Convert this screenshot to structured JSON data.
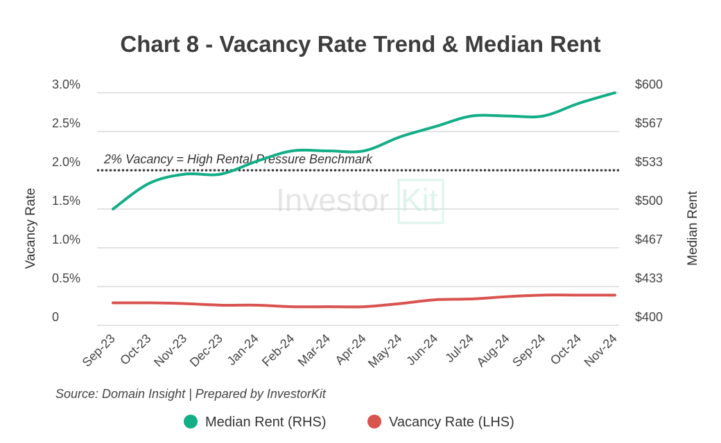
{
  "chart_data": {
    "type": "line",
    "title": "Chart 8 - Vacancy Rate Trend & Median Rent",
    "categories": [
      "Sep-23",
      "Oct-23",
      "Nov-23",
      "Dec-23",
      "Jan-24",
      "Feb-24",
      "Mar-24",
      "Apr-24",
      "May-24",
      "Jun-24",
      "Jul-24",
      "Aug-24",
      "Sep-24",
      "Oct-24",
      "Nov-24"
    ],
    "series": [
      {
        "name": "Median Rent (RHS)",
        "axis": "right",
        "color": "#13ad86",
        "values": [
          500,
          522,
          530,
          530,
          541,
          550,
          550,
          550,
          562,
          571,
          580,
          580,
          580,
          591,
          600
        ]
      },
      {
        "name": "Vacancy Rate (LHS)",
        "axis": "left",
        "color": "#d9534f",
        "values": [
          0.29,
          0.29,
          0.28,
          0.26,
          0.26,
          0.24,
          0.24,
          0.24,
          0.28,
          0.33,
          0.34,
          0.37,
          0.39,
          0.39,
          0.39
        ]
      }
    ],
    "ylabel_left": "Vacancy Rate",
    "ylabel_right": "Median Rent",
    "ylim_left": [
      0,
      3.0
    ],
    "ylim_right": [
      400,
      600
    ],
    "yticks_left": [
      "0",
      "0.5%",
      "1.0%",
      "1.5%",
      "2.0%",
      "2.5%",
      "3.0%"
    ],
    "yticks_right": [
      "$400",
      "$433",
      "$467",
      "$500",
      "$533",
      "$567",
      "$600"
    ],
    "grid": true,
    "legend": "bottom",
    "benchmark": {
      "value": 2.0,
      "label": "2% Vacancy = High Rental Pressure Benchmark"
    },
    "source": "Source: Domain Insight | Prepared by InvestorKit",
    "watermark": "InvestorKit"
  }
}
